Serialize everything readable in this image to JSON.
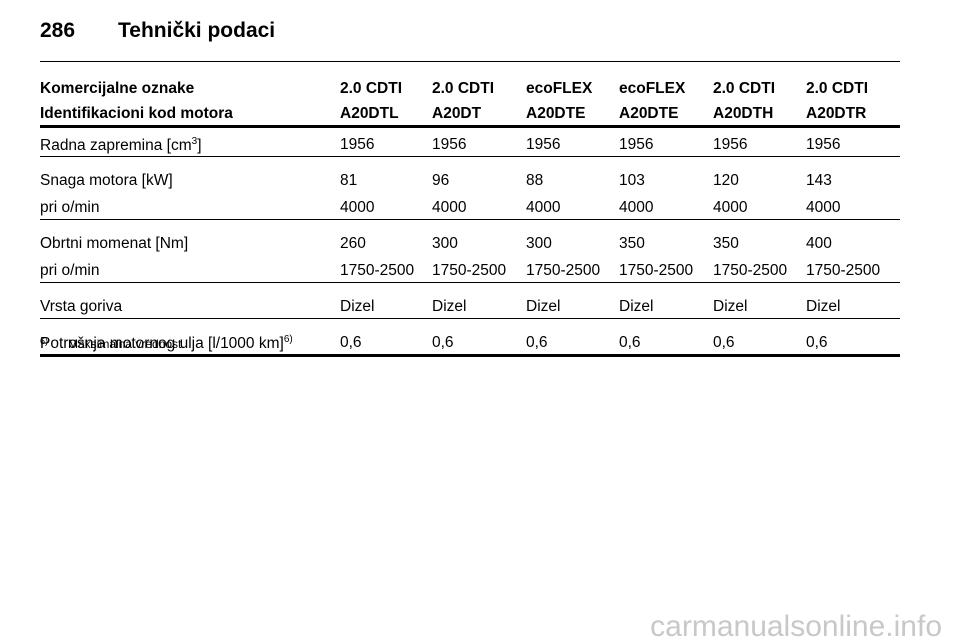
{
  "header": {
    "page_number": "286",
    "title": "Tehnički podaci"
  },
  "table": {
    "header_rows": [
      [
        "Komercijalne oznake",
        "2.0 CDTI",
        "2.0 CDTI",
        "ecoFLEX",
        "ecoFLEX",
        "2.0 CDTI",
        "2.0 CDTI"
      ],
      [
        "Identifikacioni kod motora",
        "A20DTL",
        "A20DT",
        "A20DTE",
        "A20DTE",
        "A20DTH",
        "A20DTR"
      ]
    ],
    "groups": [
      [
        {
          "label": [
            "Radna zapremina [cm",
            "3",
            "]"
          ],
          "values": [
            "1956",
            "1956",
            "1956",
            "1956",
            "1956",
            "1956"
          ]
        }
      ],
      [
        {
          "label": [
            "Snaga motora [kW]"
          ],
          "values": [
            "81",
            "96",
            "88",
            "103",
            "120",
            "143"
          ]
        },
        {
          "label": [
            "pri o/min"
          ],
          "values": [
            "4000",
            "4000",
            "4000",
            "4000",
            "4000",
            "4000"
          ]
        }
      ],
      [
        {
          "label": [
            "Obrtni momenat [Nm]"
          ],
          "values": [
            "260",
            "300",
            "300",
            "350",
            "350",
            "400"
          ]
        },
        {
          "label": [
            "pri o/min"
          ],
          "values": [
            "1750-2500",
            "1750-2500",
            "1750-2500",
            "1750-2500",
            "1750-2500",
            "1750-2500"
          ]
        }
      ],
      [
        {
          "label": [
            "Vrsta goriva"
          ],
          "values": [
            "Dizel",
            "Dizel",
            "Dizel",
            "Dizel",
            "Dizel",
            "Dizel"
          ]
        }
      ],
      [
        {
          "label": [
            "Potrošnja motornog ulja [l/1000 km]",
            "6)"
          ],
          "values": [
            "0,6",
            "0,6",
            "0,6",
            "0,6",
            "0,6",
            "0,6"
          ]
        }
      ]
    ]
  },
  "footnote": {
    "marker": "6)",
    "text": "Maksimalna vrednost."
  },
  "watermark": "carmanualsonline.info"
}
